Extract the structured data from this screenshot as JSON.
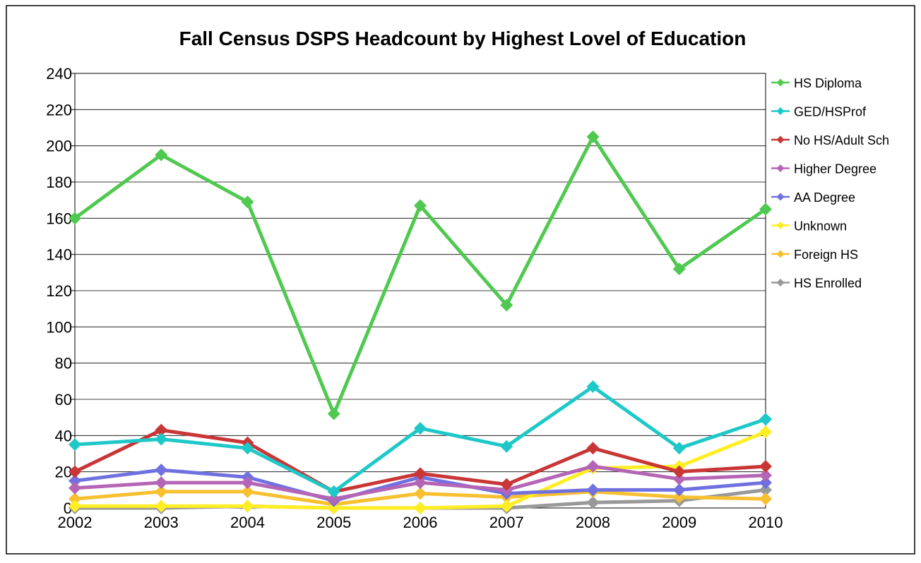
{
  "chart_data": {
    "type": "line",
    "title": "Fall Census DSPS Headcount by Highest Lovel of Education",
    "xlabel": "",
    "ylabel": "",
    "categories": [
      "2002",
      "2003",
      "2004",
      "2005",
      "2006",
      "2007",
      "2008",
      "2009",
      "2010"
    ],
    "ylim": [
      0,
      240
    ],
    "yticks": [
      0,
      20,
      40,
      60,
      80,
      100,
      120,
      140,
      160,
      180,
      200,
      220,
      240
    ],
    "grid": true,
    "legend_position": "right",
    "series": [
      {
        "name": "HS Diploma",
        "color": "#4fc94f",
        "values": [
          160,
          195,
          169,
          52,
          167,
          112,
          205,
          132,
          165
        ]
      },
      {
        "name": "GED/HSProf",
        "color": "#1ec8c8",
        "values": [
          35,
          38,
          33,
          9,
          44,
          34,
          67,
          33,
          49
        ]
      },
      {
        "name": "No HS/Adult Sch",
        "color": "#c93636",
        "values": [
          20,
          43,
          36,
          9,
          19,
          13,
          33,
          20,
          23
        ]
      },
      {
        "name": "Higher Degree",
        "color": "#b565b5",
        "values": [
          11,
          14,
          14,
          5,
          14,
          10,
          23,
          16,
          18
        ]
      },
      {
        "name": "AA Degree",
        "color": "#7070e0",
        "values": [
          15,
          21,
          17,
          4,
          17,
          8,
          10,
          10,
          14
        ]
      },
      {
        "name": "Unknown",
        "color": "#ffee22",
        "values": [
          1,
          1,
          1,
          0,
          0,
          1,
          22,
          23,
          42
        ]
      },
      {
        "name": "Foreign HS",
        "color": "#f7c030",
        "values": [
          5,
          9,
          9,
          2,
          8,
          6,
          9,
          6,
          5
        ]
      },
      {
        "name": "HS Enrolled",
        "color": "#999999",
        "values": [
          0,
          0,
          1,
          0,
          0,
          0,
          3,
          4,
          10
        ]
      }
    ]
  }
}
